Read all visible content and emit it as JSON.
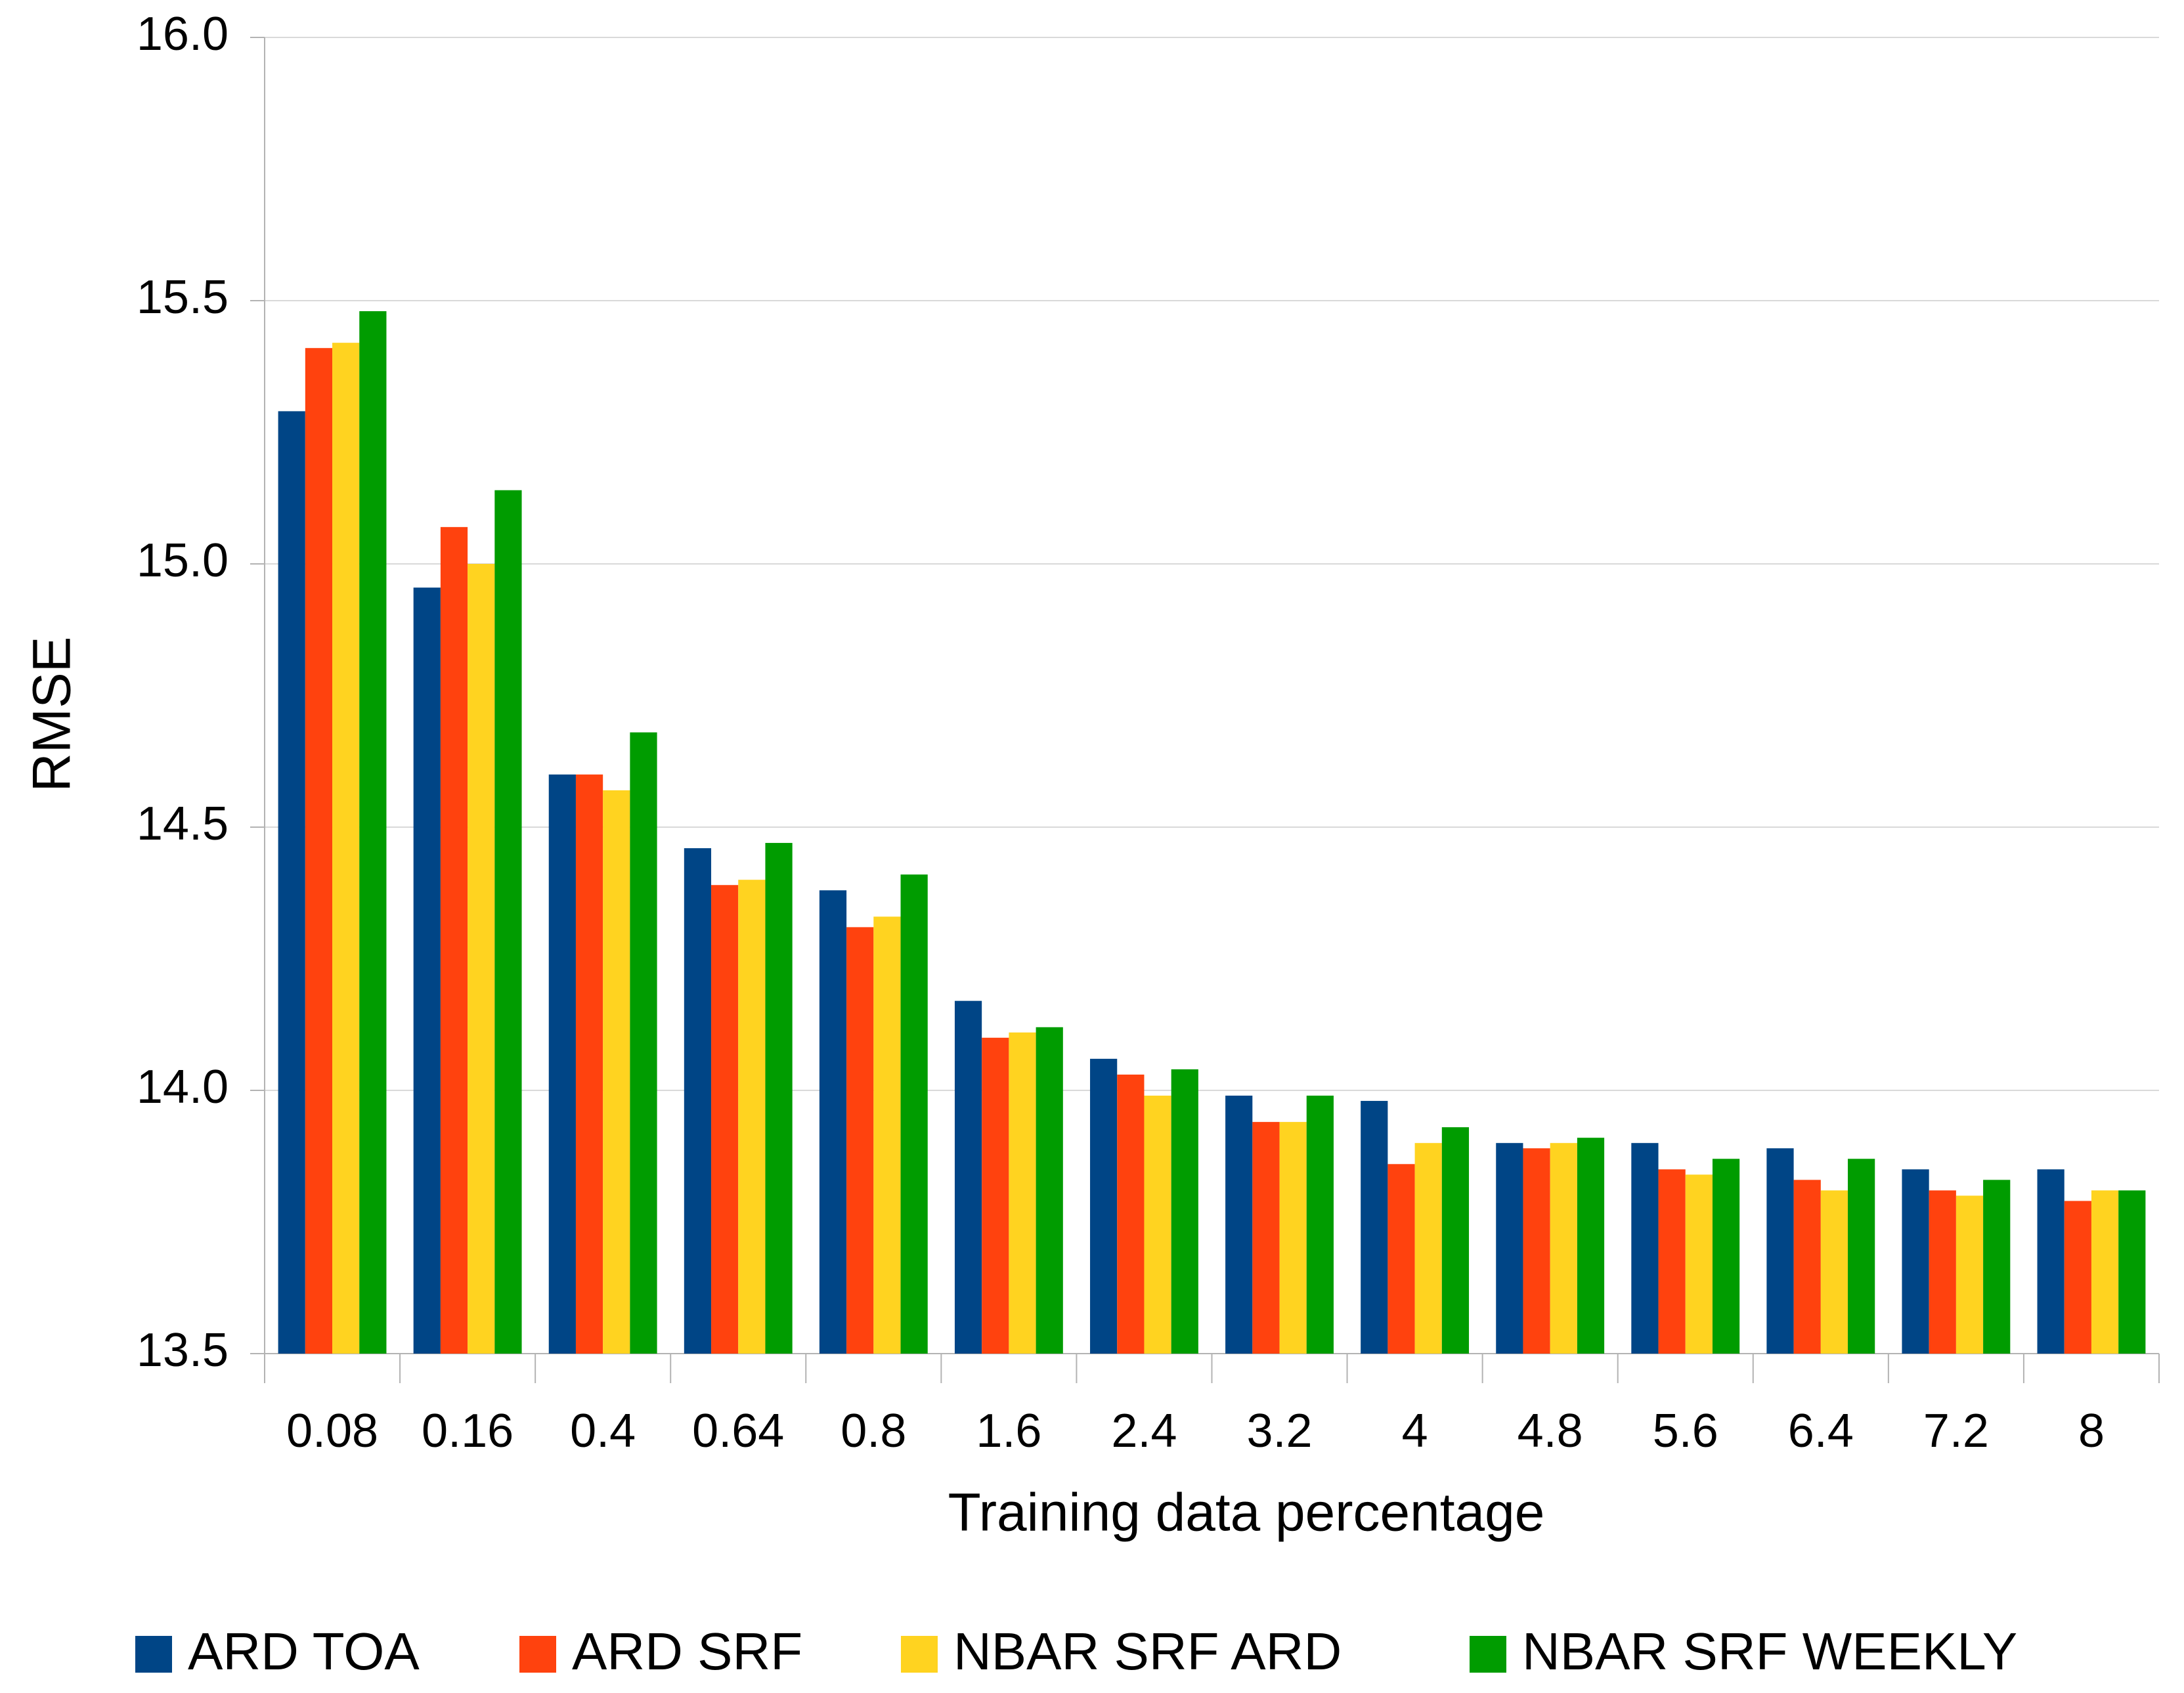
{
  "chart_data": {
    "type": "bar",
    "x_label": "Training data percentage",
    "y_label": "RMSE",
    "categories": [
      "0.08",
      "0.16",
      "0.4",
      "0.64",
      "0.8",
      "1.6",
      "2.4",
      "3.2",
      "4",
      "4.8",
      "5.6",
      "6.4",
      "7.2",
      "8"
    ],
    "series": [
      {
        "name": "ARD TOA",
        "color": "#004586",
        "values": [
          15.29,
          14.955,
          14.6,
          14.46,
          14.38,
          14.17,
          14.06,
          13.99,
          13.98,
          13.9,
          13.9,
          13.89,
          13.85,
          13.85
        ]
      },
      {
        "name": "ARD SRF",
        "color": "#ff420e",
        "values": [
          15.41,
          15.07,
          14.6,
          14.39,
          14.31,
          14.1,
          14.03,
          13.94,
          13.86,
          13.89,
          13.85,
          13.83,
          13.81,
          13.79
        ]
      },
      {
        "name": "NBAR SRF ARD",
        "color": "#ffd320",
        "values": [
          15.42,
          15.0,
          14.57,
          14.4,
          14.33,
          14.11,
          13.99,
          13.94,
          13.9,
          13.9,
          13.84,
          13.81,
          13.8,
          13.81
        ]
      },
      {
        "name": "NBAR SRF WEEKLY",
        "color": "#009c00",
        "values": [
          15.48,
          15.14,
          14.68,
          14.47,
          14.41,
          14.12,
          14.04,
          13.99,
          13.93,
          13.91,
          13.87,
          13.87,
          13.83,
          13.81
        ]
      }
    ],
    "ylim": [
      13.5,
      16.0
    ],
    "yticks": [
      {
        "value": 13.5,
        "label": "13.5"
      },
      {
        "value": 14.0,
        "label": "14.0"
      },
      14.5,
      {
        "value": 15.0,
        "label": "15.0"
      },
      15.5,
      {
        "value": 16.0,
        "label": "16.0"
      }
    ],
    "grid": true,
    "legend": "bottom"
  }
}
